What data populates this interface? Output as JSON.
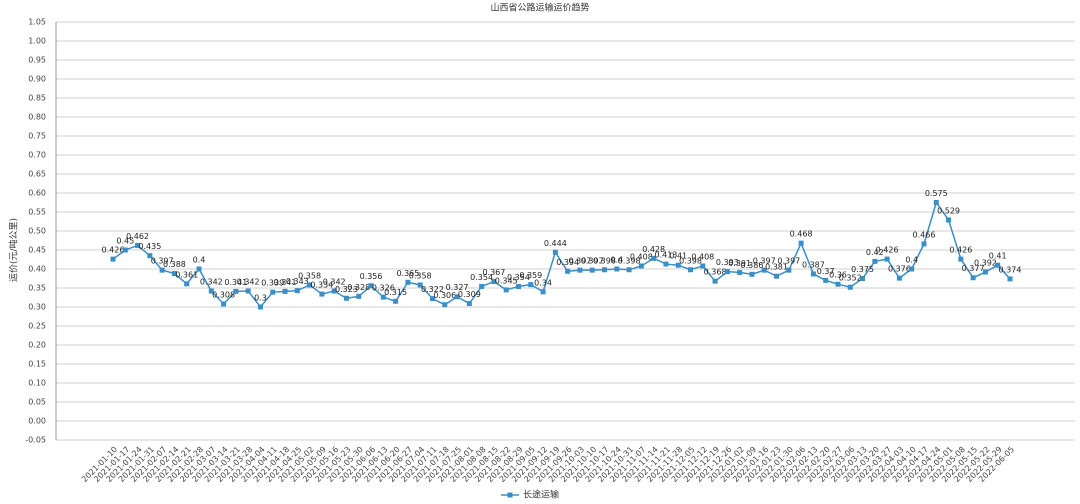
{
  "chart_data": {
    "type": "line",
    "title": "山西省公路运输运价趋势",
    "y_label": "运价(元/吨公里)",
    "x": [
      "2021-01-10",
      "2021-01-17",
      "2021-01-24",
      "2021-01-31",
      "2021-02-07",
      "2021-02-14",
      "2021-02-21",
      "2021-02-28",
      "2021-03-07",
      "2021-03-14",
      "2021-03-21",
      "2021-03-28",
      "2021-04-04",
      "2021-04-11",
      "2021-04-18",
      "2021-04-25",
      "2021-05-02",
      "2021-05-09",
      "2021-05-16",
      "2021-05-23",
      "2021-05-30",
      "2021-06-06",
      "2021-06-13",
      "2021-06-20",
      "2021-06-27",
      "2021-07-04",
      "2021-07-11",
      "2021-07-18",
      "2021-07-25",
      "2021-08-01",
      "2021-08-08",
      "2021-08-15",
      "2021-08-22",
      "2021-08-29",
      "2021-09-05",
      "2021-09-12",
      "2021-09-19",
      "2021-09-26",
      "2021-10-03",
      "2021-10-10",
      "2021-10-17",
      "2021-10-24",
      "2021-10-31",
      "2021-11-07",
      "2021-11-14",
      "2021-11-21",
      "2021-11-28",
      "2021-12-05",
      "2021-12-12",
      "2021-12-19",
      "2021-12-26",
      "2022-01-02",
      "2022-01-09",
      "2022-01-16",
      "2022-01-23",
      "2022-01-30",
      "2022-02-06",
      "2022-02-13",
      "2022-02-20",
      "2022-02-27",
      "2022-03-06",
      "2022-03-13",
      "2022-03-20",
      "2022-03-27",
      "2022-04-03",
      "2022-04-10",
      "2022-04-17",
      "2022-04-24",
      "2022-05-01",
      "2022-05-08",
      "2022-05-15",
      "2022-05-22",
      "2022-05-29",
      "2022-06-05"
    ],
    "series": [
      {
        "name": "长途运输",
        "color": "#3a8fc7",
        "values": [
          0.426,
          0.45,
          0.462,
          0.435,
          0.397,
          0.388,
          0.361,
          0.4,
          0.342,
          0.308,
          0.341,
          0.342,
          0.3,
          0.339,
          0.341,
          0.343,
          0.358,
          0.334,
          0.342,
          0.323,
          0.328,
          0.356,
          0.326,
          0.315,
          0.365,
          0.358,
          0.322,
          0.306,
          0.327,
          0.309,
          0.354,
          0.367,
          0.345,
          0.354,
          0.359,
          0.34,
          0.444,
          0.394,
          0.397,
          0.397,
          0.398,
          0.4,
          0.398,
          0.408,
          0.428,
          0.413,
          0.41,
          0.398,
          0.408,
          0.368,
          0.393,
          0.391,
          0.386,
          0.397,
          0.381,
          0.397,
          0.468,
          0.387,
          0.37,
          0.36,
          0.352,
          0.375,
          0.42,
          0.426,
          0.376,
          0.4,
          0.466,
          0.575,
          0.529,
          0.426,
          0.377,
          0.392,
          0.41,
          0.374
        ]
      }
    ],
    "ylim": [
      -0.05,
      1.05
    ],
    "yticks": [
      {
        "value": -0.05,
        "label": "-0.05"
      },
      {
        "value": 0,
        "label": "0.00"
      },
      {
        "value": 0.05,
        "label": "0.05"
      },
      {
        "value": 0.1,
        "label": "0.10"
      },
      {
        "value": 0.15,
        "label": "0.15"
      },
      {
        "value": 0.2,
        "label": "0.20"
      },
      {
        "value": 0.25,
        "label": "0.25"
      },
      {
        "value": 0.3,
        "label": "0.30"
      },
      {
        "value": 0.35,
        "label": "0.35"
      },
      {
        "value": 0.4,
        "label": "0.40"
      },
      {
        "value": 0.45,
        "label": "0.45"
      },
      {
        "value": 0.5,
        "label": "0.50"
      },
      {
        "value": 0.55,
        "label": "0.55"
      },
      {
        "value": 0.6,
        "label": "0.60"
      },
      {
        "value": 0.65,
        "label": "0.65"
      },
      {
        "value": 0.7,
        "label": "0.70"
      },
      {
        "value": 0.75,
        "label": "0.75"
      },
      {
        "value": 0.8,
        "label": "0.80"
      },
      {
        "value": 0.85,
        "label": "0.85"
      },
      {
        "value": 0.9,
        "label": "0.90"
      },
      {
        "value": 0.95,
        "label": "0.95"
      },
      {
        "value": 1.0,
        "label": "1.00"
      },
      {
        "value": 1.05,
        "label": "1.05"
      }
    ],
    "grid": true,
    "legend": "bottom"
  }
}
